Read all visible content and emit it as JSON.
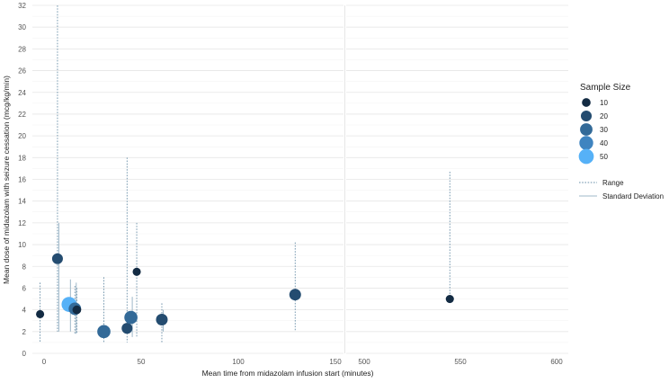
{
  "chart_data": {
    "type": "scatter",
    "xlabel": "Mean time from midazolam infusion start (minutes)",
    "ylabel": "Mean dose of midazolam with seizure cessation (mcg/kg/min)",
    "ylim": [
      0,
      32
    ],
    "y_ticks": [
      "0",
      "2",
      "4",
      "6",
      "8",
      "10",
      "12",
      "14",
      "16",
      "18",
      "20",
      "22",
      "24",
      "26",
      "28",
      "30",
      "32"
    ],
    "panels": [
      {
        "xlim": [
          -3,
          158
        ],
        "x_ticks": [
          "0",
          "50",
          "100",
          "150"
        ]
      },
      {
        "xlim": [
          490,
          610
        ],
        "x_ticks": [
          "500",
          "550",
          "600"
        ]
      }
    ],
    "grid": true,
    "size_legend_title": "Sample Size",
    "size_legend": [
      {
        "label": "10",
        "size": 10,
        "color": "#132b43"
      },
      {
        "label": "20",
        "size": 20,
        "color": "#244c70"
      },
      {
        "label": "30",
        "size": 30,
        "color": "#336a98"
      },
      {
        "label": "40",
        "size": 40,
        "color": "#3f84c0"
      },
      {
        "label": "50",
        "size": 50,
        "color": "#56b1f7"
      }
    ],
    "line_legend": [
      {
        "label": "Range",
        "style": "dotted",
        "color": "#6a8fa8"
      },
      {
        "label": "Standard Deviation",
        "style": "solid",
        "color": "#9fb8c9"
      }
    ],
    "points": [
      {
        "x": 1,
        "y": 3.6,
        "n": 8,
        "range": [
          1.0,
          6.5
        ]
      },
      {
        "x": 10,
        "y": 8.7,
        "n": 20,
        "range": [
          2.0,
          32.0
        ],
        "sd": [
          2.0,
          12.0
        ]
      },
      {
        "x": 16,
        "y": 4.5,
        "n": 50,
        "sd": [
          2.0,
          6.8
        ]
      },
      {
        "x": 19,
        "y": 4.1,
        "n": 30,
        "range": [
          1.8,
          6.2
        ],
        "sd": [
          1.8,
          6.5
        ]
      },
      {
        "x": 20,
        "y": 4.0,
        "n": 10,
        "range": [
          1.8,
          6.0
        ]
      },
      {
        "x": 34,
        "y": 2.0,
        "n": 35,
        "range": [
          1.0,
          7.0
        ]
      },
      {
        "x": 46,
        "y": 2.3,
        "n": 20,
        "range": [
          1.0,
          18.0
        ]
      },
      {
        "x": 48,
        "y": 3.3,
        "n": 35,
        "sd": [
          1.5,
          5.2
        ]
      },
      {
        "x": 51,
        "y": 7.5,
        "n": 8,
        "range": [
          1.5,
          12.0
        ]
      },
      {
        "x": 64,
        "y": 3.1,
        "n": 25,
        "range": [
          1.0,
          4.6
        ],
        "sd": [
          2.0,
          4.0
        ]
      },
      {
        "x": 133,
        "y": 5.4,
        "n": 25,
        "range": [
          2.0,
          10.2
        ]
      },
      {
        "x": 546,
        "y": 5.0,
        "n": 8,
        "range": [
          4.8,
          16.7
        ]
      }
    ]
  }
}
